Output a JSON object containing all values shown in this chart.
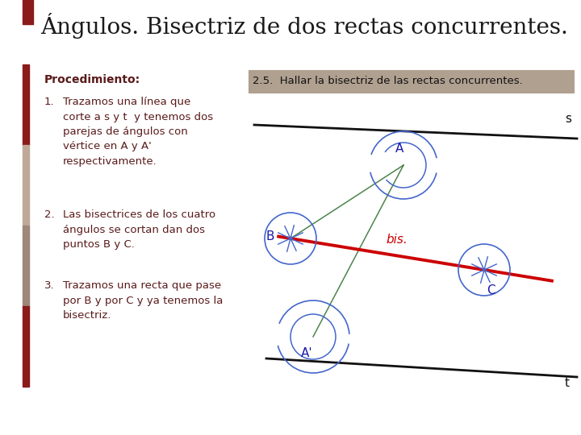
{
  "title": "Ángulos. Bisectriz de dos rectas concurrentes.",
  "title_color": "#1a1a1a",
  "title_marker_color": "#8B1A1A",
  "subtitle_box": "2.5.  Hallar la bisectriz de las rectas concurrentes.",
  "subtitle_box_bg": "#b0a090",
  "proc_label": "Procedimiento:",
  "proc_color": "#5a1a1a",
  "step1": "Trazamos una línea que\ncorte a s y t  y tenemos dos\nparejas de ángulos con\nvértice en A y A'\nrespectivamente.",
  "step2": "Las bisectrices de los cuatro\nángulos se cortan dan dos\npuntos B y C.",
  "step3": "Trazamos una recta que pase\npor B y por C y ya tenemos la\nbisectriz.",
  "step_color": "#5a1a1a",
  "bg_color": "#ffffff",
  "line_color": "#111111",
  "bisectriz_color": "#cc0000",
  "arc_color": "#4466cc",
  "green_line_color": "#2d6e2d",
  "label_color": "#1a1aaa",
  "sidebar_colors": [
    "#8B1A1A",
    "#c0a898",
    "#9e8878",
    "#8B1A1A"
  ]
}
